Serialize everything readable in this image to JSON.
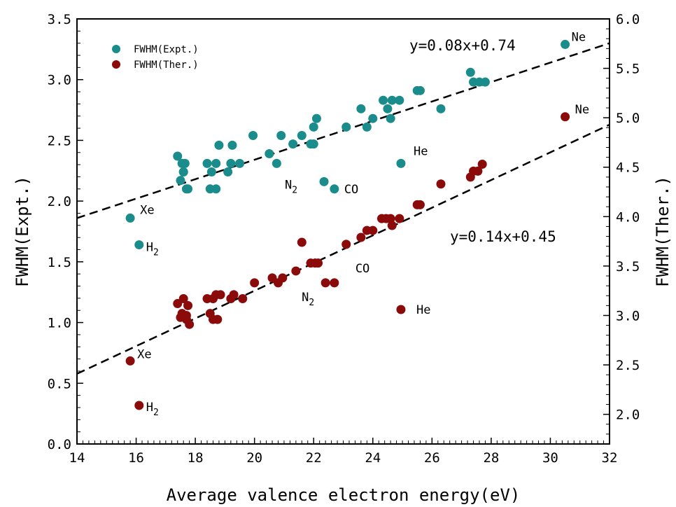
{
  "chart_data": {
    "type": "scatter",
    "xlabel": "Average valence electron energy(eV)",
    "ylabel": "FWHM(Expt.)",
    "y2label": "FWHM(Ther.)",
    "xlim": [
      14,
      32
    ],
    "ylim": [
      0,
      3.5
    ],
    "y2lim": [
      1.7,
      6.0
    ],
    "xticks": [
      "14",
      "16",
      "18",
      "20",
      "22",
      "24",
      "26",
      "28",
      "30",
      "32"
    ],
    "yticks": [
      "0.0",
      "0.5",
      "1.0",
      "1.5",
      "2.0",
      "2.5",
      "3.0",
      "3.5"
    ],
    "y2ticks": [
      "2.0",
      "2.5",
      "3.0",
      "3.5",
      "4.0",
      "4.5",
      "5.0",
      "5.5",
      "6.0"
    ],
    "legend_position": "top-left",
    "colors": {
      "expt": "#1a8c8c",
      "ther": "#8b0a0a"
    },
    "series": [
      {
        "name": "FWHM(Expt.)",
        "axis": "left",
        "color": "#1a8c8c",
        "points": [
          [
            15.8,
            1.86
          ],
          [
            16.1,
            1.64
          ],
          [
            17.4,
            2.37
          ],
          [
            17.5,
            2.17
          ],
          [
            17.55,
            2.31
          ],
          [
            17.6,
            2.24
          ],
          [
            17.65,
            2.31
          ],
          [
            17.6,
            2.24
          ],
          [
            17.7,
            2.1
          ],
          [
            17.75,
            2.1
          ],
          [
            18.4,
            2.31
          ],
          [
            18.5,
            2.1
          ],
          [
            18.55,
            2.24
          ],
          [
            18.7,
            2.1
          ],
          [
            18.7,
            2.31
          ],
          [
            18.8,
            2.46
          ],
          [
            19.1,
            2.24
          ],
          [
            19.2,
            2.31
          ],
          [
            19.25,
            2.46
          ],
          [
            19.5,
            2.31
          ],
          [
            19.95,
            2.54
          ],
          [
            20.5,
            2.39
          ],
          [
            20.75,
            2.31
          ],
          [
            20.9,
            2.54
          ],
          [
            21.3,
            2.47
          ],
          [
            21.6,
            2.54
          ],
          [
            21.9,
            2.47
          ],
          [
            22.0,
            2.47
          ],
          [
            22.0,
            2.61
          ],
          [
            22.1,
            2.68
          ],
          [
            22.35,
            2.16
          ],
          [
            22.7,
            2.1
          ],
          [
            23.1,
            2.61
          ],
          [
            23.6,
            2.76
          ],
          [
            23.8,
            2.61
          ],
          [
            24.0,
            2.68
          ],
          [
            24.35,
            2.83
          ],
          [
            24.5,
            2.76
          ],
          [
            24.6,
            2.68
          ],
          [
            24.65,
            2.83
          ],
          [
            24.9,
            2.83
          ],
          [
            24.95,
            2.31
          ],
          [
            25.5,
            2.91
          ],
          [
            25.6,
            2.91
          ],
          [
            26.3,
            2.76
          ],
          [
            27.3,
            3.06
          ],
          [
            27.4,
            2.98
          ],
          [
            27.6,
            2.98
          ],
          [
            27.8,
            2.98
          ],
          [
            30.5,
            3.29
          ]
        ]
      },
      {
        "name": "FWHM(Ther.)",
        "axis": "right",
        "color": "#8b0a0a",
        "points": [
          [
            15.8,
            2.54
          ],
          [
            16.1,
            2.09
          ],
          [
            17.4,
            3.12
          ],
          [
            17.5,
            2.98
          ],
          [
            17.55,
            3.02
          ],
          [
            17.6,
            3.17
          ],
          [
            17.7,
            2.96
          ],
          [
            17.7,
            3.0
          ],
          [
            17.75,
            3.1
          ],
          [
            17.8,
            2.91
          ],
          [
            18.4,
            3.17
          ],
          [
            18.5,
            3.02
          ],
          [
            18.6,
            3.17
          ],
          [
            18.6,
            2.96
          ],
          [
            18.7,
            3.21
          ],
          [
            18.75,
            2.96
          ],
          [
            18.85,
            3.21
          ],
          [
            19.2,
            3.17
          ],
          [
            19.3,
            3.21
          ],
          [
            19.6,
            3.17
          ],
          [
            20.0,
            3.33
          ],
          [
            20.6,
            3.38
          ],
          [
            20.8,
            3.33
          ],
          [
            20.95,
            3.38
          ],
          [
            21.4,
            3.45
          ],
          [
            21.6,
            3.74
          ],
          [
            21.9,
            3.53
          ],
          [
            22.05,
            3.53
          ],
          [
            22.15,
            3.53
          ],
          [
            22.4,
            3.33
          ],
          [
            22.7,
            3.33
          ],
          [
            23.1,
            3.72
          ],
          [
            23.6,
            3.79
          ],
          [
            23.8,
            3.86
          ],
          [
            24.0,
            3.86
          ],
          [
            24.3,
            3.98
          ],
          [
            24.45,
            3.98
          ],
          [
            24.6,
            3.98
          ],
          [
            24.65,
            3.91
          ],
          [
            24.9,
            3.98
          ],
          [
            24.95,
            3.06
          ],
          [
            25.5,
            4.12
          ],
          [
            25.6,
            4.12
          ],
          [
            26.3,
            4.33
          ],
          [
            27.3,
            4.4
          ],
          [
            27.4,
            4.46
          ],
          [
            27.55,
            4.46
          ],
          [
            27.7,
            4.53
          ],
          [
            30.5,
            5.01
          ]
        ]
      }
    ],
    "fits": [
      {
        "equation": "y=0.08x+0.74",
        "axis": "left",
        "slope": 0.08,
        "intercept": 0.74
      },
      {
        "equation": "y=0.14x+0.45",
        "axis": "right",
        "slope": 0.14,
        "intercept": 0.45
      }
    ],
    "annotations": [
      {
        "text": "Ne",
        "x": 30.5,
        "y": 3.29,
        "axis": "left"
      },
      {
        "text": "He",
        "x": 25.0,
        "y": 2.31,
        "axis": "left"
      },
      {
        "text": "N",
        "sub": "2",
        "x": 22.35,
        "y": 2.16,
        "axis": "left"
      },
      {
        "text": "CO",
        "x": 22.7,
        "y": 2.1,
        "axis": "left"
      },
      {
        "text": "Xe",
        "x": 15.8,
        "y": 1.86,
        "axis": "left"
      },
      {
        "text": "H",
        "sub": "2",
        "x": 16.1,
        "y": 1.64,
        "axis": "left"
      },
      {
        "text": "Ne",
        "x": 30.5,
        "y": 5.01,
        "axis": "right"
      },
      {
        "text": "CO",
        "x": 22.7,
        "y": 3.33,
        "axis": "right"
      },
      {
        "text": "N",
        "sub": "2",
        "x": 22.4,
        "y": 3.33,
        "axis": "right"
      },
      {
        "text": "He",
        "x": 25.0,
        "y": 3.06,
        "axis": "right"
      },
      {
        "text": "Xe",
        "x": 15.8,
        "y": 2.54,
        "axis": "right"
      },
      {
        "text": "H",
        "sub": "2",
        "x": 16.1,
        "y": 2.09,
        "axis": "right"
      }
    ]
  }
}
